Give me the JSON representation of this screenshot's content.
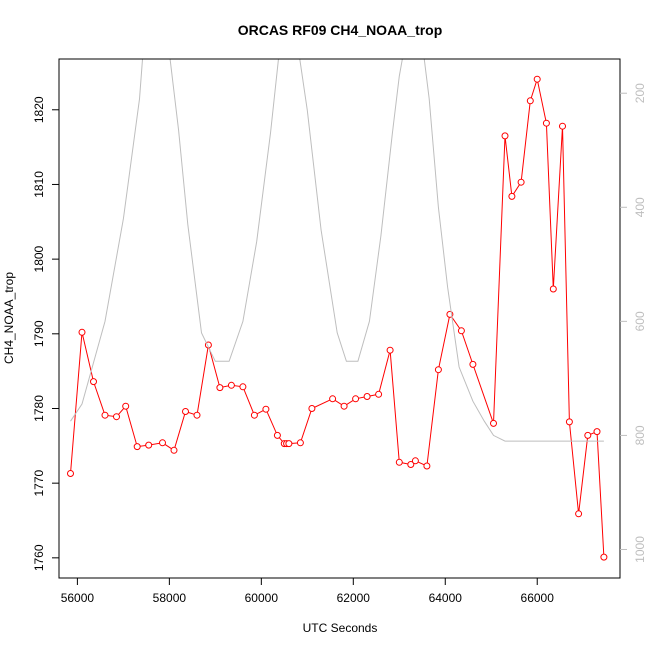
{
  "chart_data": {
    "type": "line",
    "title": "ORCAS RF09 CH4_NOAA_trop",
    "xlabel": "UTC Seconds",
    "ylabel": "CH4_NOAA_trop",
    "xlim": [
      55600,
      67800
    ],
    "ylim": [
      1757.3,
      1826.8
    ],
    "x_ticks": [
      56000,
      58000,
      60000,
      62000,
      64000,
      66000
    ],
    "y_ticks": [
      1760,
      1770,
      1780,
      1790,
      1800,
      1810,
      1820
    ],
    "y2_ticks": [
      200,
      400,
      600,
      800,
      1000
    ],
    "y2lim": [
      1050,
      140
    ],
    "grid": false,
    "series": [
      {
        "axis": "left",
        "color": "#ff0000",
        "marker": "open-circle",
        "x": [
          55850,
          56100,
          56350,
          56600,
          56850,
          57050,
          57300,
          57550,
          57850,
          58100,
          58350,
          58600,
          58850,
          59100,
          59350,
          59600,
          59850,
          60100,
          60350,
          60500,
          60550,
          60600,
          60850,
          61100,
          61550,
          61800,
          62050,
          62300,
          62550,
          62800,
          63000,
          63250,
          63350,
          63600,
          63850,
          64100,
          64350,
          64600,
          65050,
          65300,
          65450,
          65650,
          65850,
          66000,
          66200,
          66350,
          66550,
          66700,
          66900,
          67100,
          67300,
          67450
        ],
        "y": [
          1771.3,
          1790.2,
          1783.6,
          1779.1,
          1778.9,
          1780.3,
          1774.9,
          1775.1,
          1775.4,
          1774.4,
          1779.6,
          1779.1,
          1788.5,
          1782.8,
          1783.1,
          1782.9,
          1779.1,
          1779.9,
          1776.4,
          1775.3,
          1775.3,
          1775.3,
          1775.4,
          1780.0,
          1781.3,
          1780.3,
          1781.3,
          1781.6,
          1781.9,
          1787.8,
          1772.8,
          1772.5,
          1773.0,
          1772.3,
          1785.2,
          1792.6,
          1790.4,
          1785.9,
          1778.0,
          1816.5,
          1808.4,
          1810.3,
          1821.2,
          1824.1,
          1818.2,
          1796.0,
          1817.8,
          1778.2,
          1765.9,
          1776.4,
          1776.9,
          1760.1
        ]
      },
      {
        "axis": "right",
        "color": "#bebebe",
        "marker": "none",
        "x": [
          55850,
          56100,
          56600,
          57000,
          57350,
          57500,
          57650,
          57850,
          58000,
          58200,
          58400,
          58700,
          59000,
          59300,
          59600,
          59900,
          60200,
          60400,
          60600,
          60800,
          61000,
          61300,
          61650,
          61850,
          62100,
          62350,
          62600,
          62850,
          63000,
          63200,
          63450,
          63650,
          63850,
          64050,
          64300,
          64600,
          64850,
          65050,
          65300,
          67450
        ],
        "y": [
          775,
          745,
          600,
          420,
          210,
          50,
          50,
          50,
          130,
          265,
          430,
          620,
          670,
          670,
          600,
          460,
          270,
          120,
          120,
          120,
          230,
          440,
          620,
          670,
          670,
          600,
          450,
          270,
          170,
          80,
          80,
          210,
          400,
          540,
          680,
          740,
          775,
          800,
          810,
          810
        ]
      }
    ]
  }
}
